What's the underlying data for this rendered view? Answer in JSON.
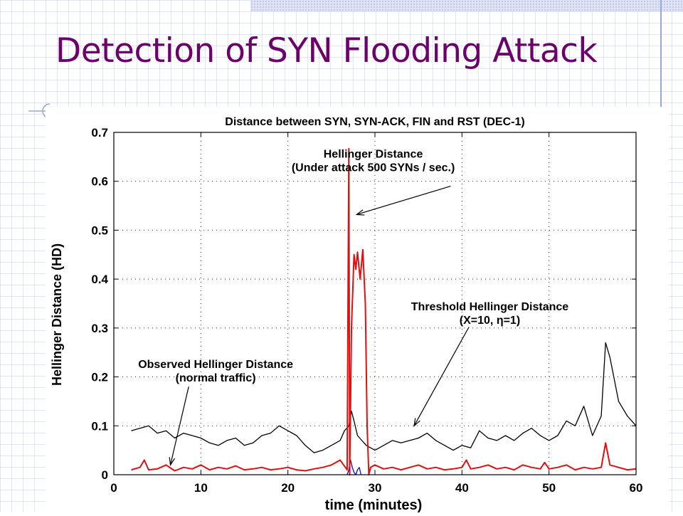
{
  "slide": {
    "title": "Detection of SYN Flooding Attack"
  },
  "colors": {
    "title": "#6b006b",
    "attack_series": "#e01010",
    "threshold_series": "#000000",
    "observed_series": "#1010c0"
  },
  "chart_data": {
    "type": "line",
    "title": "Distance between SYN, SYN-ACK, FIN and RST (DEC-1)",
    "xlabel": "time (minutes)",
    "ylabel": "Hellinger Distance (HD)",
    "xlim": [
      0,
      60
    ],
    "ylim": [
      0,
      0.7
    ],
    "grid": true,
    "x_ticks": [
      "0",
      "10",
      "20",
      "30",
      "40",
      "50",
      "60"
    ],
    "y_ticks": [
      "0",
      "0.1",
      "0.2",
      "0.3",
      "0.4",
      "0.5",
      "0.6",
      "0.7"
    ],
    "annotations": [
      {
        "lines": [
          "Hellinger Distance",
          "(Under attack 500 SYNs / sec.)"
        ]
      },
      {
        "lines": [
          "Threshold Hellinger Distance",
          "(X=10, η=1)"
        ]
      },
      {
        "lines": [
          "Observed Hellinger Distance",
          "(normal traffic)"
        ]
      }
    ],
    "series": [
      {
        "color": "#000000",
        "x": [
          2,
          3,
          4,
          5,
          6,
          7,
          8,
          9,
          10,
          11,
          12,
          13,
          14,
          15,
          16,
          17,
          18,
          19,
          20,
          21,
          22,
          23,
          24,
          25,
          26,
          26.5,
          27,
          27.3,
          27.6,
          28,
          29,
          30,
          31,
          32,
          33,
          34,
          35,
          36,
          37,
          38,
          39,
          40,
          41,
          42,
          43,
          44,
          45,
          46,
          47,
          48,
          49,
          50,
          51,
          52,
          53,
          54,
          55,
          56,
          56.5,
          57,
          58,
          59,
          60
        ],
        "y": [
          0.09,
          0.095,
          0.1,
          0.085,
          0.09,
          0.075,
          0.085,
          0.08,
          0.075,
          0.065,
          0.06,
          0.07,
          0.075,
          0.06,
          0.065,
          0.08,
          0.085,
          0.1,
          0.09,
          0.08,
          0.06,
          0.045,
          0.05,
          0.06,
          0.07,
          0.09,
          0.1,
          0.13,
          0.11,
          0.08,
          0.06,
          0.05,
          0.06,
          0.07,
          0.065,
          0.07,
          0.075,
          0.085,
          0.07,
          0.06,
          0.05,
          0.06,
          0.055,
          0.09,
          0.075,
          0.07,
          0.08,
          0.07,
          0.085,
          0.095,
          0.08,
          0.07,
          0.08,
          0.11,
          0.1,
          0.14,
          0.08,
          0.12,
          0.27,
          0.24,
          0.15,
          0.12,
          0.1
        ]
      },
      {
        "color": "#e01010",
        "x": [
          2,
          3,
          3.5,
          4,
          5,
          6,
          7,
          8,
          9,
          10,
          11,
          12,
          13,
          14,
          15,
          16,
          17,
          18,
          19,
          20,
          21,
          22,
          23,
          24,
          25,
          26,
          26.8,
          27,
          27.1,
          27.3,
          27.6,
          27.8,
          28,
          28.3,
          28.6,
          28.9,
          29.1,
          29.3,
          29.5,
          30,
          31,
          32,
          33,
          34,
          35,
          36,
          37,
          38,
          39,
          40,
          40.5,
          41,
          42,
          43,
          44,
          45,
          46,
          47,
          48,
          49,
          49.5,
          50,
          51,
          52,
          53,
          54,
          55,
          56,
          56.5,
          57,
          58,
          59,
          60
        ],
        "y": [
          0.01,
          0.015,
          0.03,
          0.01,
          0.012,
          0.02,
          0.008,
          0.015,
          0.012,
          0.02,
          0.01,
          0.015,
          0.012,
          0.018,
          0.01,
          0.012,
          0.015,
          0.01,
          0.012,
          0.015,
          0.01,
          0.008,
          0.012,
          0.015,
          0.02,
          0.03,
          0.01,
          0.667,
          0.0,
          0.3,
          0.45,
          0.42,
          0.455,
          0.4,
          0.46,
          0.35,
          0.1,
          0.0,
          0.015,
          0.02,
          0.012,
          0.015,
          0.01,
          0.015,
          0.02,
          0.012,
          0.015,
          0.01,
          0.012,
          0.015,
          0.03,
          0.012,
          0.015,
          0.02,
          0.012,
          0.015,
          0.01,
          0.02,
          0.015,
          0.012,
          0.025,
          0.012,
          0.015,
          0.02,
          0.01,
          0.015,
          0.012,
          0.015,
          0.065,
          0.02,
          0.015,
          0.01,
          0.012
        ]
      },
      {
        "color": "#1010c0",
        "x": [
          26.8,
          27,
          27.2,
          27.4,
          27.6,
          27.8,
          28,
          28.2,
          28.4
        ],
        "y": [
          0.0,
          0.01,
          0.03,
          0.015,
          0.005,
          0.0,
          0.01,
          0.015,
          0.0
        ]
      }
    ]
  }
}
